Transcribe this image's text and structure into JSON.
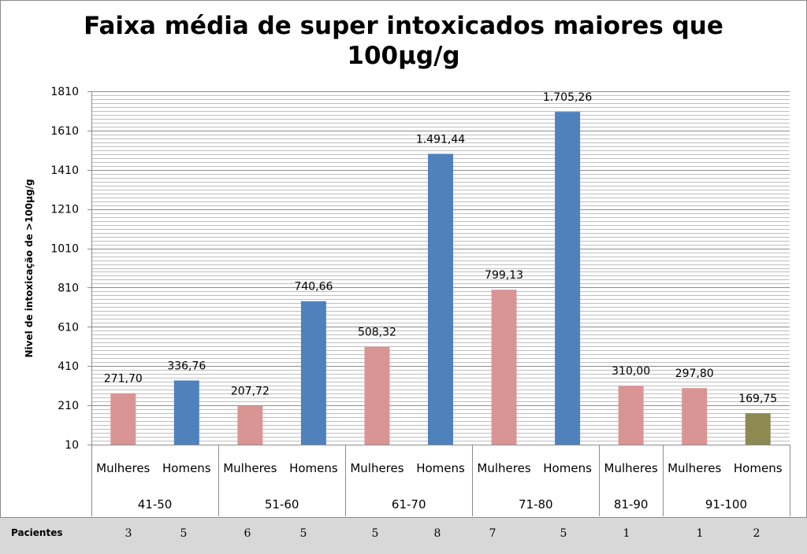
{
  "chart_data": {
    "type": "bar",
    "title_lines": [
      "Faixa média de super intoxicados maiores que",
      "100µg/g"
    ],
    "ylabel": "Nivel de intoxicação de >100µg/g",
    "xlabel": "",
    "ylim": [
      10,
      1810
    ],
    "y_ticks": [
      "10",
      "210",
      "410",
      "610",
      "810",
      "1010",
      "1210",
      "1410",
      "1610",
      "1810"
    ],
    "grid": true,
    "groups": [
      {
        "label": "41-50",
        "bars": [
          {
            "category": "Mulheres",
            "value": 271.7,
            "label": "271,70",
            "color": "#d99594"
          },
          {
            "category": "Homens",
            "value": 336.76,
            "label": "336,76",
            "color": "#4f81bd"
          }
        ]
      },
      {
        "label": "51-60",
        "bars": [
          {
            "category": "Mulheres",
            "value": 207.72,
            "label": "207,72",
            "color": "#d99594"
          },
          {
            "category": "Homens",
            "value": 740.66,
            "label": "740,66",
            "color": "#4f81bd"
          }
        ]
      },
      {
        "label": "61-70",
        "bars": [
          {
            "category": "Mulheres",
            "value": 508.32,
            "label": "508,32",
            "color": "#d99594"
          },
          {
            "category": "Homens",
            "value": 1491.44,
            "label": "1.491,44",
            "color": "#4f81bd"
          }
        ]
      },
      {
        "label": "71-80",
        "bars": [
          {
            "category": "Mulheres",
            "value": 799.13,
            "label": "799,13",
            "color": "#d99594"
          },
          {
            "category": "Homens",
            "value": 1705.26,
            "label": "1.705,26",
            "color": "#4f81bd"
          }
        ]
      },
      {
        "label": "81-90",
        "bars": [
          {
            "category": "Mulheres",
            "value": 310.0,
            "label": "310,00",
            "color": "#d99594"
          }
        ]
      },
      {
        "label": "91-100",
        "bars": [
          {
            "category": "Mulheres",
            "value": 297.8,
            "label": "297,80",
            "color": "#d99594"
          },
          {
            "category": "Homens",
            "value": 169.75,
            "label": "169,75",
            "color": "#8c8a50"
          }
        ]
      }
    ]
  },
  "footer": {
    "label": "Pacientes",
    "counts": [
      "3",
      "5",
      "6",
      "5",
      "5",
      "8",
      "7",
      "5",
      "1",
      "1",
      "2"
    ]
  }
}
